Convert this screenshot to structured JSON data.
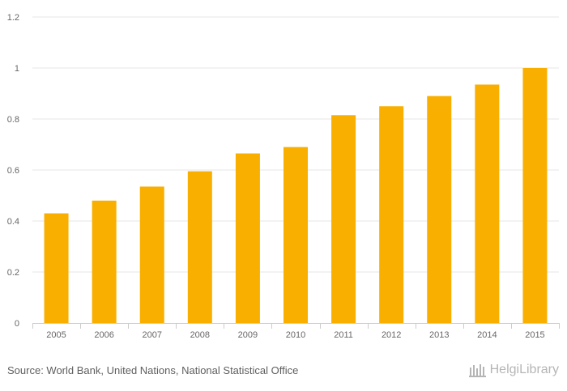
{
  "chart_data": {
    "type": "bar",
    "title": "",
    "xlabel": "",
    "ylabel": "",
    "categories": [
      "2005",
      "2006",
      "2007",
      "2008",
      "2009",
      "2010",
      "2011",
      "2012",
      "2013",
      "2014",
      "2015"
    ],
    "values": [
      0.43,
      0.48,
      0.535,
      0.595,
      0.665,
      0.69,
      0.815,
      0.85,
      0.89,
      0.935,
      1.0
    ],
    "ylim": [
      0,
      1.2
    ],
    "yticks": [
      "0",
      "0.2",
      "0.4",
      "0.6",
      "0.8",
      "1",
      "1.2"
    ],
    "grid": true,
    "bar_color": "#f9af00"
  },
  "source": "Source: World Bank, United Nations, National Statistical Office",
  "brand": {
    "logo_text": "HelgiLibrary",
    "icon": "library-logo-icon"
  }
}
